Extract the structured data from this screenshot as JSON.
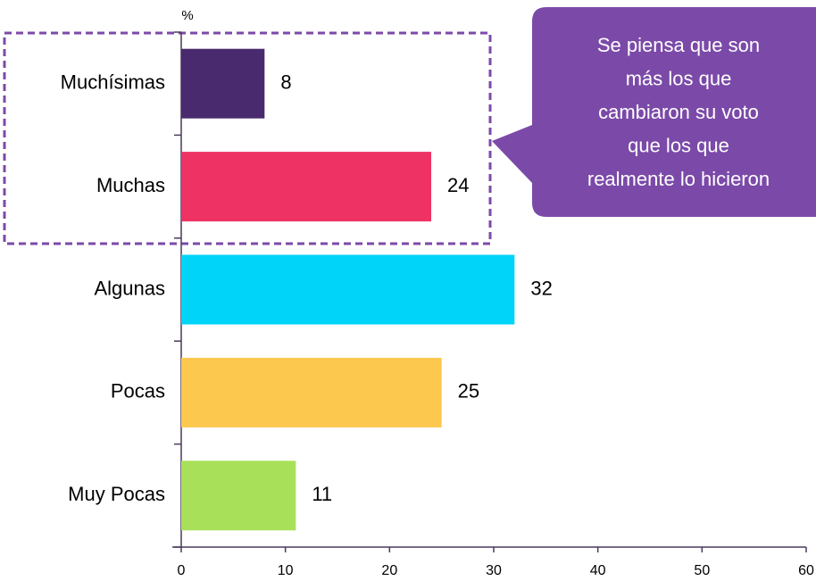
{
  "chart_data": {
    "type": "bar",
    "orientation": "horizontal",
    "axis_label": "%",
    "categories": [
      "Muchísimas",
      "Muchas",
      "Algunas",
      "Pocas",
      "Muy Pocas"
    ],
    "values": [
      8,
      24,
      32,
      25,
      11
    ],
    "colors": [
      "#4a2a6e",
      "#ee3264",
      "#00d4f8",
      "#fdc84e",
      "#a8e05a"
    ],
    "xlim": [
      0,
      60
    ],
    "xticks": [
      0,
      10,
      20,
      30,
      40,
      50,
      60
    ],
    "grid": false,
    "annotation": [
      "Se piensa que son",
      "más los que",
      "cambiaron su voto",
      "que los que",
      "realmente lo hicieron"
    ]
  }
}
